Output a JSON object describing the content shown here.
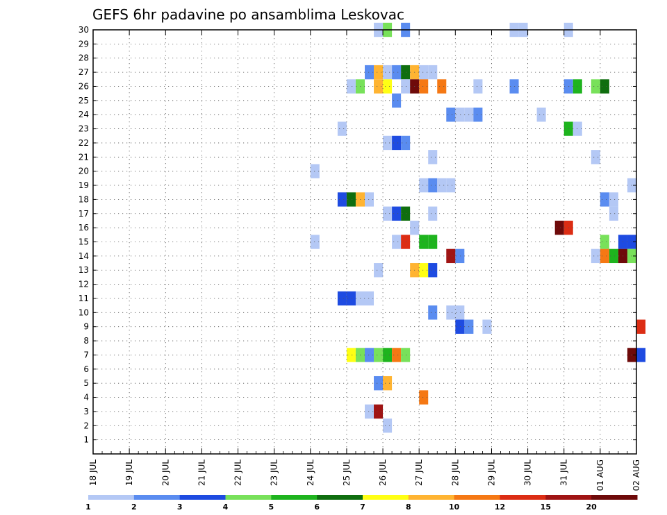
{
  "chart_data": {
    "type": "heatmap",
    "title": "GEFS 6hr padavine po ansamblima Leskovac",
    "x_tick_labels": [
      "18 JUL",
      "19 JUL",
      "20 JUL",
      "21 JUL",
      "22 JUL",
      "23 JUL",
      "24 JUL",
      "25 JUL",
      "26 JUL",
      "27 JUL",
      "28 JUL",
      "29 JUL",
      "30 JUL",
      "31 JUL",
      "01 AUG",
      "02 AUG"
    ],
    "y_tick_labels": [
      "1",
      "2",
      "3",
      "4",
      "5",
      "6",
      "7",
      "8",
      "9",
      "10",
      "11",
      "12",
      "13",
      "14",
      "15",
      "16",
      "17",
      "18",
      "19",
      "20",
      "21",
      "22",
      "23",
      "24",
      "25",
      "26",
      "27",
      "28",
      "29",
      "30"
    ],
    "xlim_days": [
      0,
      15
    ],
    "steps_per_day": 4,
    "ylim_members": [
      0,
      30
    ],
    "grid": true,
    "legend_placement": "bottom",
    "legend_labels": [
      "1",
      "2",
      "3",
      "4",
      "5",
      "6",
      "7",
      "8",
      "10",
      "12",
      "15",
      "20"
    ],
    "legend_colors": [
      "#b4c8f5",
      "#5a8cf0",
      "#1e4be1",
      "#78e15a",
      "#1eb41e",
      "#0f6e0f",
      "#ffff14",
      "#ffb432",
      "#f57814",
      "#dc2d14",
      "#a01414",
      "#6e0a0a"
    ],
    "cell_colors": {
      "0": "#b4c8f5",
      "1": "#5a8cf0",
      "2": "#1e4be1",
      "3": "#78e15a",
      "4": "#1eb41e",
      "5": "#0f6e0f",
      "6": "#ffff14",
      "7": "#ffb432",
      "8": "#f57814",
      "9": "#dc2d14",
      "10": "#a01414",
      "11": "#6e0a0a"
    },
    "cells_note_format": "[member, step, category]",
    "cells": [
      [
        30,
        31,
        0
      ],
      [
        30,
        32,
        3
      ],
      [
        30,
        34,
        1
      ],
      [
        30,
        46,
        0
      ],
      [
        30,
        47,
        0
      ],
      [
        30,
        52,
        0
      ],
      [
        27,
        30,
        1
      ],
      [
        27,
        31,
        7
      ],
      [
        27,
        32,
        0
      ],
      [
        27,
        33,
        1
      ],
      [
        27,
        34,
        5
      ],
      [
        27,
        35,
        7
      ],
      [
        27,
        36,
        0
      ],
      [
        27,
        37,
        0
      ],
      [
        26,
        28,
        0
      ],
      [
        26,
        29,
        3
      ],
      [
        26,
        31,
        7
      ],
      [
        26,
        32,
        6
      ],
      [
        26,
        34,
        0
      ],
      [
        26,
        35,
        11
      ],
      [
        26,
        36,
        8
      ],
      [
        26,
        38,
        8
      ],
      [
        26,
        42,
        0
      ],
      [
        26,
        46,
        1
      ],
      [
        26,
        52,
        1
      ],
      [
        26,
        53,
        4
      ],
      [
        26,
        55,
        3
      ],
      [
        26,
        56,
        5
      ],
      [
        25,
        33,
        1
      ],
      [
        24,
        39,
        1
      ],
      [
        24,
        40,
        0
      ],
      [
        24,
        41,
        0
      ],
      [
        24,
        42,
        1
      ],
      [
        24,
        49,
        0
      ],
      [
        23,
        27,
        0
      ],
      [
        23,
        52,
        4
      ],
      [
        23,
        53,
        0
      ],
      [
        22,
        32,
        0
      ],
      [
        22,
        33,
        2
      ],
      [
        22,
        34,
        1
      ],
      [
        21,
        37,
        0
      ],
      [
        21,
        55,
        0
      ],
      [
        20,
        24,
        0
      ],
      [
        19,
        36,
        0
      ],
      [
        19,
        37,
        1
      ],
      [
        19,
        38,
        0
      ],
      [
        19,
        39,
        0
      ],
      [
        19,
        59,
        0
      ],
      [
        18,
        27,
        2
      ],
      [
        18,
        28,
        5
      ],
      [
        18,
        29,
        7
      ],
      [
        18,
        30,
        0
      ],
      [
        18,
        56,
        1
      ],
      [
        18,
        57,
        0
      ],
      [
        17,
        32,
        0
      ],
      [
        17,
        33,
        2
      ],
      [
        17,
        34,
        5
      ],
      [
        17,
        37,
        0
      ],
      [
        17,
        57,
        0
      ],
      [
        16,
        35,
        0
      ],
      [
        16,
        51,
        11
      ],
      [
        16,
        52,
        9
      ],
      [
        15,
        24,
        0
      ],
      [
        15,
        33,
        0
      ],
      [
        15,
        34,
        9
      ],
      [
        15,
        36,
        4
      ],
      [
        15,
        37,
        4
      ],
      [
        15,
        56,
        3
      ],
      [
        15,
        58,
        2
      ],
      [
        15,
        59,
        2
      ],
      [
        14,
        39,
        10
      ],
      [
        14,
        40,
        1
      ],
      [
        14,
        55,
        0
      ],
      [
        14,
        56,
        8
      ],
      [
        14,
        57,
        4
      ],
      [
        14,
        58,
        11
      ],
      [
        14,
        59,
        3
      ],
      [
        13,
        31,
        0
      ],
      [
        13,
        35,
        7
      ],
      [
        13,
        36,
        6
      ],
      [
        13,
        37,
        2
      ],
      [
        11,
        27,
        2
      ],
      [
        11,
        28,
        2
      ],
      [
        11,
        29,
        0
      ],
      [
        11,
        30,
        0
      ],
      [
        10,
        37,
        1
      ],
      [
        10,
        39,
        0
      ],
      [
        10,
        40,
        0
      ],
      [
        9,
        40,
        2
      ],
      [
        9,
        41,
        1
      ],
      [
        9,
        43,
        0
      ],
      [
        9,
        60,
        9
      ],
      [
        7,
        28,
        6
      ],
      [
        7,
        29,
        3
      ],
      [
        7,
        30,
        1
      ],
      [
        7,
        31,
        3
      ],
      [
        7,
        32,
        4
      ],
      [
        7,
        33,
        8
      ],
      [
        7,
        34,
        3
      ],
      [
        7,
        59,
        11
      ],
      [
        7,
        60,
        2
      ],
      [
        5,
        31,
        1
      ],
      [
        5,
        32,
        7
      ],
      [
        4,
        36,
        8
      ],
      [
        3,
        30,
        0
      ],
      [
        3,
        31,
        10
      ],
      [
        2,
        32,
        0
      ]
    ]
  }
}
